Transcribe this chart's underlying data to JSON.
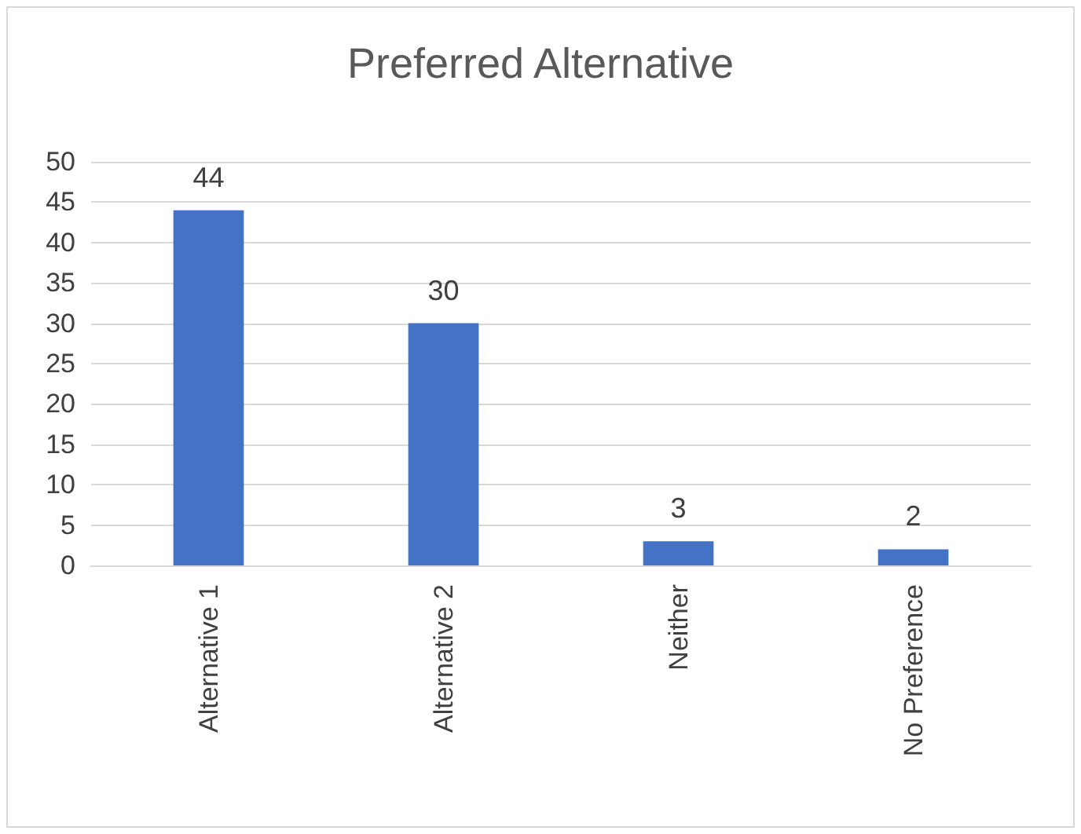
{
  "chart_data": {
    "type": "bar",
    "title": "Preferred Alternative",
    "categories": [
      "Alternative 1",
      "Alternative 2",
      "Neither",
      "No Preference"
    ],
    "values": [
      44,
      30,
      3,
      2
    ],
    "color": "#4472c4",
    "ylim": [
      0,
      50
    ],
    "yticks": [
      0,
      5,
      10,
      15,
      20,
      25,
      30,
      35,
      40,
      45,
      50
    ],
    "grid": "y",
    "data_labels": true
  }
}
